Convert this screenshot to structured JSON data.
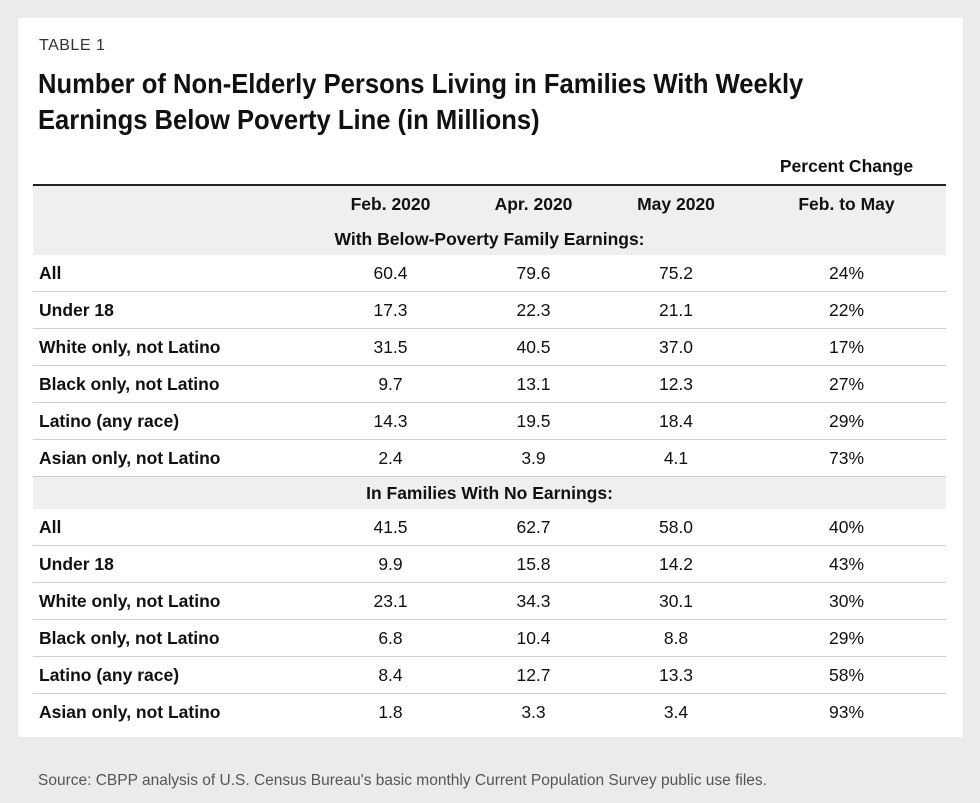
{
  "label": "TABLE 1",
  "title": "Number of Non-Elderly Persons Living in Families With Weekly Earnings Below Poverty Line (in Millions)",
  "percent_change_header": "Percent Change",
  "columns": [
    "",
    "Feb. 2020",
    "Apr. 2020",
    "May 2020",
    "Feb. to May"
  ],
  "sections": [
    {
      "heading": "With Below-Poverty Family Earnings:",
      "rows": [
        [
          "All",
          "60.4",
          "79.6",
          "75.2",
          "24%"
        ],
        [
          "Under 18",
          "17.3",
          "22.3",
          "21.1",
          "22%"
        ],
        [
          "White only, not Latino",
          "31.5",
          "40.5",
          "37.0",
          "17%"
        ],
        [
          "Black only, not Latino",
          "9.7",
          "13.1",
          "12.3",
          "27%"
        ],
        [
          "Latino (any race)",
          "14.3",
          "19.5",
          "18.4",
          "29%"
        ],
        [
          "Asian only, not Latino",
          "2.4",
          "3.9",
          "4.1",
          "73%"
        ]
      ]
    },
    {
      "heading": "In Families With No Earnings:",
      "rows": [
        [
          "All",
          "41.5",
          "62.7",
          "58.0",
          "40%"
        ],
        [
          "Under 18",
          "9.9",
          "15.8",
          "14.2",
          "43%"
        ],
        [
          "White only, not Latino",
          "23.1",
          "34.3",
          "30.1",
          "30%"
        ],
        [
          "Black only, not Latino",
          "6.8",
          "10.4",
          "8.8",
          "29%"
        ],
        [
          "Latino (any race)",
          "8.4",
          "12.7",
          "13.3",
          "58%"
        ],
        [
          "Asian only, not Latino",
          "1.8",
          "3.3",
          "3.4",
          "93%"
        ]
      ]
    }
  ],
  "source": "Source: CBPP analysis of U.S. Census Bureau's basic monthly Current Population Survey public use files."
}
